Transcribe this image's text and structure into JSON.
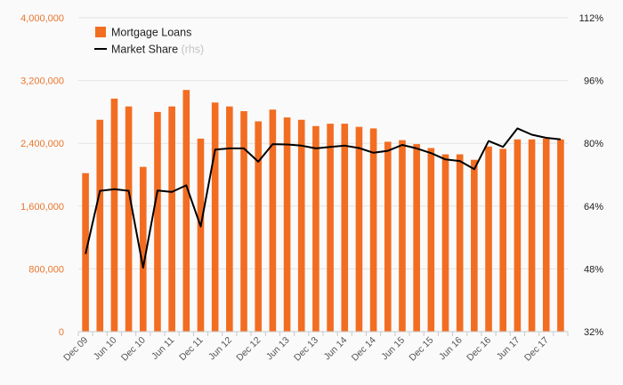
{
  "chart_data": {
    "type": "bar",
    "title": "",
    "xlabel": "",
    "ylabel": "",
    "y_left": {
      "lim": [
        0,
        4000000
      ],
      "ticks": [
        0,
        800000,
        1600000,
        2400000,
        3200000,
        4000000
      ],
      "tick_labels": [
        "0",
        "800,000",
        "1,600,000",
        "2,400,000",
        "3,200,000",
        "4,000,000"
      ]
    },
    "y_right": {
      "lim": [
        32,
        112
      ],
      "ticks": [
        32,
        48,
        64,
        80,
        96,
        112
      ],
      "tick_labels": [
        "32%",
        "48%",
        "64%",
        "80%",
        "96%",
        "112%"
      ]
    },
    "x_tick_labels": [
      {
        "index": 0,
        "label": "Dec 09"
      },
      {
        "index": 2,
        "label": "Jun 10"
      },
      {
        "index": 4,
        "label": "Dec 10"
      },
      {
        "index": 6,
        "label": "Jun 11"
      },
      {
        "index": 8,
        "label": "Dec 11"
      },
      {
        "index": 10,
        "label": "Jun 12"
      },
      {
        "index": 12,
        "label": "Dec 12"
      },
      {
        "index": 14,
        "label": "Jun 13"
      },
      {
        "index": 16,
        "label": "Dec 13"
      },
      {
        "index": 18,
        "label": "Jun 14"
      },
      {
        "index": 20,
        "label": "Dec 14"
      },
      {
        "index": 22,
        "label": "Jun 15"
      },
      {
        "index": 24,
        "label": "Dec 15"
      },
      {
        "index": 26,
        "label": "Jun 16"
      },
      {
        "index": 28,
        "label": "Dec 16"
      },
      {
        "index": 30,
        "label": "Jun 17"
      },
      {
        "index": 32,
        "label": "Dec 17"
      }
    ],
    "legend": {
      "position": "top-left",
      "entries": [
        {
          "name": "Mortgage Loans",
          "suffix": "",
          "marker": "square",
          "color": "#f26d21"
        },
        {
          "name": "Market Share",
          "suffix": "(rhs)",
          "marker": "line",
          "color": "#000000"
        }
      ]
    },
    "series": [
      {
        "name": "Mortgage Loans",
        "kind": "bar",
        "axis": "left",
        "color": "#f26d21",
        "values": [
          2020000,
          2700000,
          2970000,
          2870000,
          2100000,
          2800000,
          2870000,
          3080000,
          2460000,
          2920000,
          2870000,
          2810000,
          2680000,
          2830000,
          2730000,
          2700000,
          2620000,
          2650000,
          2650000,
          2610000,
          2590000,
          2420000,
          2440000,
          2390000,
          2340000,
          2260000,
          2260000,
          2190000,
          2360000,
          2330000,
          2450000,
          2450000,
          2460000,
          2450000
        ]
      },
      {
        "name": "Market Share",
        "kind": "line",
        "axis": "right",
        "color": "#000000",
        "values": [
          51.8,
          67.9,
          68.3,
          67.9,
          48.3,
          68.0,
          67.6,
          69.3,
          58.8,
          78.4,
          78.7,
          78.7,
          75.3,
          79.8,
          79.7,
          79.4,
          78.7,
          79.1,
          79.4,
          78.8,
          77.6,
          78.1,
          79.6,
          78.7,
          77.5,
          75.9,
          75.5,
          73.4,
          80.6,
          79.1,
          83.8,
          82.2,
          81.4,
          81.0
        ]
      }
    ],
    "grid": {
      "horizontal": true,
      "vertical": false,
      "color": "#e3e3e3"
    }
  }
}
